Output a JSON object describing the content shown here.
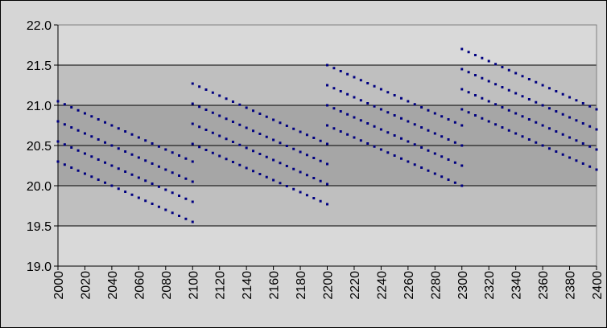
{
  "chart_data": {
    "type": "scatter",
    "x": [
      2000,
      2005,
      2010,
      2015,
      2020,
      2025,
      2030,
      2035,
      2040,
      2045,
      2050,
      2055,
      2060,
      2065,
      2070,
      2075,
      2080,
      2085,
      2090,
      2095,
      2100,
      2100,
      2105,
      2110,
      2115,
      2120,
      2125,
      2130,
      2135,
      2140,
      2145,
      2150,
      2155,
      2160,
      2165,
      2170,
      2175,
      2180,
      2185,
      2190,
      2195,
      2200,
      2200,
      2205,
      2210,
      2215,
      2220,
      2225,
      2230,
      2235,
      2240,
      2245,
      2250,
      2255,
      2260,
      2265,
      2270,
      2275,
      2280,
      2285,
      2290,
      2295,
      2300,
      2300,
      2305,
      2310,
      2315,
      2320,
      2325,
      2330,
      2335,
      2340,
      2345,
      2350,
      2355,
      2360,
      2365,
      2370,
      2375,
      2380,
      2385,
      2390,
      2395,
      2400
    ],
    "series": [
      {
        "color": "#000080",
        "values": [
          21.05,
          21.0125,
          20.975,
          20.9375,
          20.9,
          20.8625,
          20.825,
          20.7875,
          20.75,
          20.7125,
          20.675,
          20.6375,
          20.6,
          20.5625,
          20.525,
          20.4875,
          20.45,
          20.4125,
          20.375,
          20.3375,
          20.3,
          21.27,
          21.2325,
          21.195,
          21.1575,
          21.12,
          21.0825,
          21.045,
          21.0075,
          20.97,
          20.9325,
          20.895,
          20.8575,
          20.82,
          20.7825,
          20.745,
          20.7075,
          20.67,
          20.6325,
          20.595,
          20.5575,
          20.52,
          21.5,
          21.4625,
          21.425,
          21.3875,
          21.35,
          21.3125,
          21.275,
          21.2375,
          21.2,
          21.1625,
          21.125,
          21.0875,
          21.05,
          21.0125,
          20.975,
          20.9375,
          20.9,
          20.8625,
          20.825,
          20.7875,
          20.75,
          21.7,
          21.6625,
          21.625,
          21.5875,
          21.55,
          21.5125,
          21.475,
          21.4375,
          21.4,
          21.3625,
          21.325,
          21.2875,
          21.25,
          21.2125,
          21.175,
          21.1375,
          21.1,
          21.0625,
          21.025,
          20.9875,
          20.95
        ]
      },
      {
        "color": "#000080",
        "values": [
          20.8,
          20.7625,
          20.725,
          20.6875,
          20.65,
          20.6125,
          20.575,
          20.5375,
          20.5,
          20.4625,
          20.425,
          20.3875,
          20.35,
          20.3125,
          20.275,
          20.2375,
          20.2,
          20.1625,
          20.125,
          20.0875,
          20.05,
          21.02,
          20.9825,
          20.945,
          20.9075,
          20.87,
          20.8325,
          20.795,
          20.7575,
          20.72,
          20.6825,
          20.645,
          20.6075,
          20.57,
          20.5325,
          20.495,
          20.4575,
          20.42,
          20.3825,
          20.345,
          20.3075,
          20.27,
          21.25,
          21.2125,
          21.175,
          21.1375,
          21.1,
          21.0625,
          21.025,
          20.9875,
          20.95,
          20.9125,
          20.875,
          20.8375,
          20.8,
          20.7625,
          20.725,
          20.6875,
          20.65,
          20.6125,
          20.575,
          20.5375,
          20.5,
          21.45,
          21.4125,
          21.375,
          21.3375,
          21.3,
          21.2625,
          21.225,
          21.1875,
          21.15,
          21.1125,
          21.075,
          21.0375,
          21,
          20.9625,
          20.925,
          20.8875,
          20.85,
          20.8125,
          20.775,
          20.7375,
          20.7
        ]
      },
      {
        "color": "#000080",
        "values": [
          20.55,
          20.5125,
          20.475,
          20.4375,
          20.4,
          20.3625,
          20.325,
          20.2875,
          20.25,
          20.2125,
          20.175,
          20.1375,
          20.1,
          20.0625,
          20.025,
          19.9875,
          19.95,
          19.9125,
          19.875,
          19.8375,
          19.8,
          20.77,
          20.7325,
          20.695,
          20.6575,
          20.62,
          20.5825,
          20.545,
          20.5075,
          20.47,
          20.4325,
          20.395,
          20.3575,
          20.32,
          20.2825,
          20.245,
          20.2075,
          20.17,
          20.1325,
          20.095,
          20.0575,
          20.02,
          21,
          20.9625,
          20.925,
          20.8875,
          20.85,
          20.8125,
          20.775,
          20.7375,
          20.7,
          20.6625,
          20.625,
          20.5875,
          20.55,
          20.5125,
          20.475,
          20.4375,
          20.4,
          20.3625,
          20.325,
          20.2875,
          20.25,
          21.2,
          21.1625,
          21.125,
          21.0875,
          21.05,
          21.0125,
          20.975,
          20.9375,
          20.9,
          20.8625,
          20.825,
          20.7875,
          20.75,
          20.7125,
          20.675,
          20.6375,
          20.6,
          20.5625,
          20.525,
          20.4875,
          20.45
        ]
      },
      {
        "color": "#000080",
        "values": [
          20.3,
          20.2625,
          20.225,
          20.1875,
          20.15,
          20.1125,
          20.075,
          20.0375,
          20,
          19.9625,
          19.925,
          19.8875,
          19.85,
          19.8125,
          19.775,
          19.7375,
          19.7,
          19.6625,
          19.625,
          19.5875,
          19.55,
          20.52,
          20.4825,
          20.445,
          20.4075,
          20.37,
          20.3325,
          20.295,
          20.2575,
          20.22,
          20.1825,
          20.145,
          20.1075,
          20.07,
          20.0325,
          19.995,
          19.9575,
          19.92,
          19.8825,
          19.845,
          19.8075,
          19.77,
          20.75,
          20.7125,
          20.675,
          20.6375,
          20.6,
          20.5625,
          20.525,
          20.4875,
          20.45,
          20.4125,
          20.375,
          20.3375,
          20.3,
          20.2625,
          20.225,
          20.1875,
          20.15,
          20.1125,
          20.075,
          20.0375,
          20,
          20.95,
          20.9125,
          20.875,
          20.8375,
          20.8,
          20.7625,
          20.725,
          20.6875,
          20.65,
          20.6125,
          20.575,
          20.5375,
          20.5,
          20.4625,
          20.425,
          20.3875,
          20.35,
          20.3125,
          20.275,
          20.2375,
          20.2
        ]
      }
    ],
    "xlim": [
      2000,
      2400
    ],
    "xticks": [
      2000,
      2020,
      2040,
      2060,
      2080,
      2100,
      2120,
      2140,
      2160,
      2180,
      2200,
      2220,
      2240,
      2260,
      2280,
      2300,
      2320,
      2340,
      2360,
      2380,
      2400
    ],
    "ylim": [
      19,
      22
    ],
    "yticks": [
      {
        "value": 19,
        "label": "19.0"
      },
      {
        "value": 19.5,
        "label": "19.5"
      },
      {
        "value": 20,
        "label": "20.0"
      },
      {
        "value": 20.5,
        "label": "20.5"
      },
      {
        "value": 21,
        "label": "21.0"
      },
      {
        "value": 21.5,
        "label": "21.5"
      },
      {
        "value": 22,
        "label": "22.0"
      }
    ],
    "grid": true,
    "bands": [
      {
        "from": 19,
        "to": 19.5,
        "color": "#d9d9d9"
      },
      {
        "from": 19.5,
        "to": 20,
        "color": "#bfbfbf"
      },
      {
        "from": 20,
        "to": 21,
        "color": "#a6a6a6"
      },
      {
        "from": 21,
        "to": 21.5,
        "color": "#bfbfbf"
      },
      {
        "from": 21.5,
        "to": 22,
        "color": "#d9d9d9"
      }
    ]
  }
}
